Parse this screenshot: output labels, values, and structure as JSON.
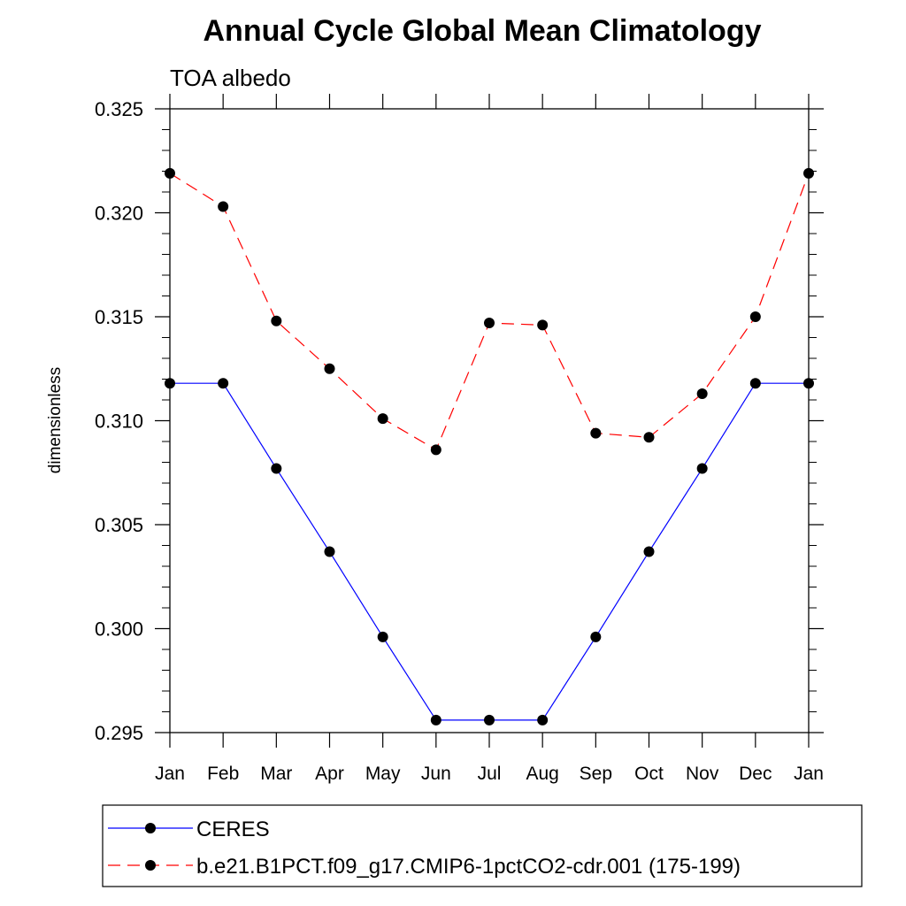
{
  "chart_data": {
    "type": "line",
    "title": "Annual Cycle Global Mean Climatology",
    "subtitle": "TOA albedo",
    "xlabel": "",
    "ylabel": "dimensionless",
    "categories": [
      "Jan",
      "Feb",
      "Mar",
      "Apr",
      "May",
      "Jun",
      "Jul",
      "Aug",
      "Sep",
      "Oct",
      "Nov",
      "Dec",
      "Jan"
    ],
    "ylim": [
      0.295,
      0.325
    ],
    "yticks": [
      0.295,
      0.3,
      0.305,
      0.31,
      0.315,
      0.32,
      0.325
    ],
    "ytick_labels": [
      "0.295",
      "0.300",
      "0.305",
      "0.310",
      "0.315",
      "0.320",
      "0.325"
    ],
    "y_minor_step": 0.001,
    "grid": false,
    "legend_position": "bottom",
    "series": [
      {
        "name": "CERES",
        "color": "#0000ff",
        "dash": "solid",
        "marker": "filled-circle",
        "values": [
          0.3118,
          0.3118,
          0.3077,
          0.3037,
          0.2996,
          0.2956,
          0.2956,
          0.2956,
          0.2996,
          0.3037,
          0.3077,
          0.3118,
          0.3118
        ]
      },
      {
        "name": "b.e21.B1PCT.f09_g17.CMIP6-1pctCO2-cdr.001 (175-199)",
        "color": "#ff0000",
        "dash": "dashed",
        "marker": "filled-circle",
        "values": [
          0.3219,
          0.3203,
          0.3148,
          0.3125,
          0.3101,
          0.3086,
          0.3147,
          0.3146,
          0.3094,
          0.3092,
          0.3113,
          0.315,
          0.3219
        ]
      }
    ]
  }
}
